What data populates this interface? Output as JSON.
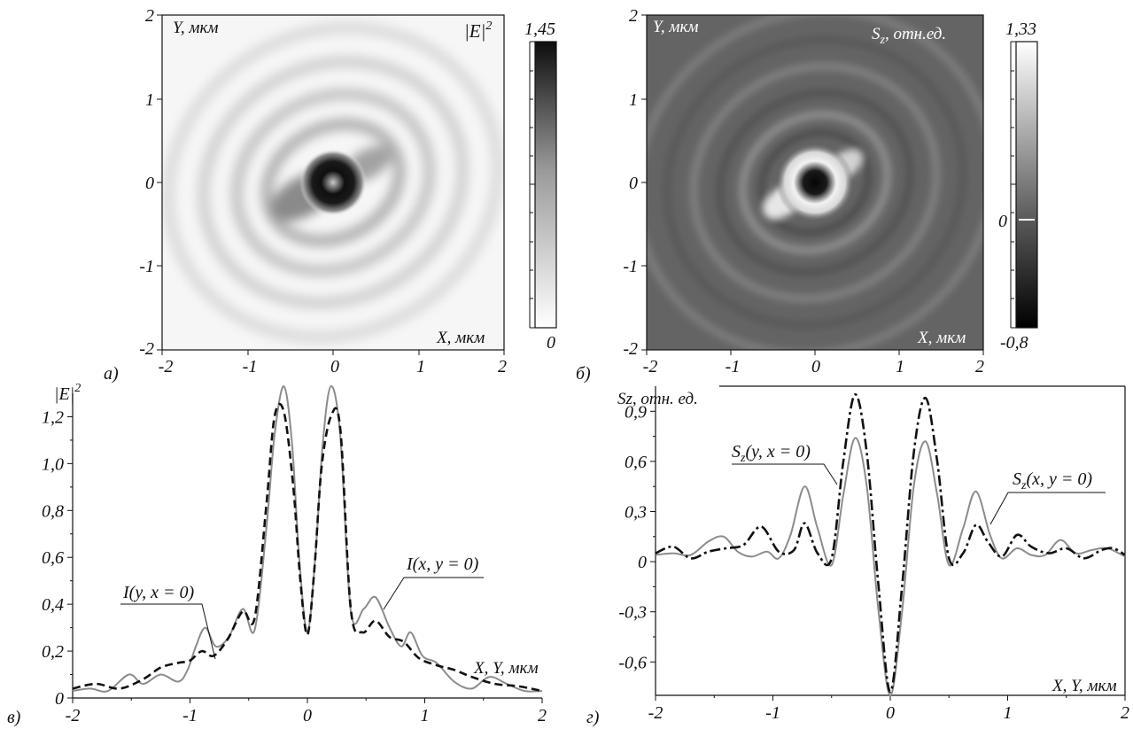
{
  "panels": {
    "a": {
      "letter": "а)",
      "y_axis_label": "Y, мкм",
      "x_axis_label": "X, мкм",
      "quantity_label": "|E|",
      "quantity_sup": "2",
      "colorbar_max": "1,45",
      "colorbar_min": "0"
    },
    "b": {
      "letter": "б)",
      "y_axis_label": "Y, мкм",
      "x_axis_label": "X, мкм",
      "quantity_label": "S",
      "quantity_sub": "z",
      "quantity_rest": ", отн.ед.",
      "colorbar_max": "1,33",
      "colorbar_zero": "0",
      "colorbar_min": "-0,8"
    },
    "c": {
      "letter": "в)",
      "y_axis_label": "|E|",
      "y_axis_sup": "2",
      "x_axis_label": "X, Y, мкм",
      "curve_label_y": "I(y, x = 0)",
      "curve_label_x": "I(x, y = 0)"
    },
    "d": {
      "letter": "г)",
      "y_axis_label": "Sz, отн. ед.",
      "x_axis_label": "X, Y, мкм",
      "curve_label_y_main": "S",
      "curve_label_y_sub": "z",
      "curve_label_y_args": "(y, x = 0)",
      "curve_label_x_main": "S",
      "curve_label_x_sub": "z",
      "curve_label_x_args": "(x, y = 0)"
    }
  },
  "chart_data": [
    {
      "id": "a",
      "type": "heatmap",
      "quantity": "|E|^2",
      "xlim": [
        -2,
        2
      ],
      "ylim": [
        -2,
        2
      ],
      "x_ticks": [
        "-2",
        "-1",
        "0",
        "1",
        "2"
      ],
      "y_ticks": [
        "2",
        "1",
        "0",
        "-1",
        "-2"
      ],
      "colorbar_range": [
        0,
        1.45
      ],
      "colormap": "white-to-black"
    },
    {
      "id": "b",
      "type": "heatmap",
      "quantity": "S_z",
      "xlim": [
        -2,
        2
      ],
      "ylim": [
        -2,
        2
      ],
      "x_ticks": [
        "-2",
        "-1",
        "0",
        "1",
        "2"
      ],
      "y_ticks": [
        "2",
        "1",
        "0",
        "-1",
        "-2"
      ],
      "colorbar_range": [
        -0.8,
        1.33
      ],
      "colormap": "black-to-white"
    },
    {
      "id": "c",
      "type": "line",
      "xlim": [
        -2,
        2
      ],
      "ylim": [
        0,
        1.3
      ],
      "x_ticks": [
        "-2",
        "-1",
        "0",
        "1",
        "2"
      ],
      "x_tick_values": [
        -2,
        -1,
        0,
        1,
        2
      ],
      "y_ticks": [
        "0",
        "0,2",
        "0,4",
        "0,6",
        "0,8",
        "1,0",
        "1,2"
      ],
      "y_tick_values": [
        0,
        0.2,
        0.4,
        0.6,
        0.8,
        1.0,
        1.2
      ],
      "series": [
        {
          "name": "I(x, y = 0)",
          "color": "#8c8c8c",
          "dash": "solid",
          "x": [
            -2,
            -1.85,
            -1.7,
            -1.52,
            -1.4,
            -1.25,
            -1.1,
            -1.02,
            -0.95,
            -0.87,
            -0.78,
            -0.67,
            -0.55,
            -0.45,
            -0.35,
            -0.28,
            -0.2,
            -0.13,
            -0.07,
            0,
            0.07,
            0.13,
            0.2,
            0.28,
            0.37,
            0.48,
            0.58,
            0.7,
            0.8,
            0.88,
            0.98,
            1.1,
            1.25,
            1.4,
            1.55,
            1.7,
            1.85,
            2
          ],
          "y": [
            0.03,
            0.04,
            0.03,
            0.1,
            0.06,
            0.1,
            0.07,
            0.12,
            0.22,
            0.3,
            0.22,
            0.26,
            0.38,
            0.29,
            0.72,
            1.12,
            1.33,
            1.08,
            0.6,
            0.28,
            0.62,
            1.08,
            1.33,
            1.12,
            0.37,
            0.38,
            0.43,
            0.3,
            0.22,
            0.28,
            0.18,
            0.15,
            0.07,
            0.04,
            0.09,
            0.06,
            0.03,
            0.03
          ]
        },
        {
          "name": "I(y, x = 0)",
          "color": "#111111",
          "dash": "dashed",
          "x": [
            -2,
            -1.8,
            -1.6,
            -1.4,
            -1.25,
            -1.1,
            -1.0,
            -0.9,
            -0.8,
            -0.68,
            -0.55,
            -0.45,
            -0.35,
            -0.28,
            -0.2,
            -0.12,
            -0.06,
            0,
            0.06,
            0.12,
            0.2,
            0.28,
            0.37,
            0.47,
            0.58,
            0.7,
            0.82,
            0.95,
            1.1,
            1.25,
            1.4,
            1.6,
            1.8,
            2
          ],
          "y": [
            0.04,
            0.06,
            0.04,
            0.08,
            0.13,
            0.15,
            0.16,
            0.2,
            0.18,
            0.25,
            0.37,
            0.34,
            0.82,
            1.2,
            1.22,
            0.9,
            0.5,
            0.27,
            0.55,
            0.98,
            1.2,
            1.15,
            0.38,
            0.28,
            0.33,
            0.26,
            0.24,
            0.17,
            0.14,
            0.12,
            0.09,
            0.06,
            0.05,
            0.03
          ]
        }
      ]
    },
    {
      "id": "d",
      "type": "line",
      "xlim": [
        -2,
        2
      ],
      "ylim": [
        -0.8,
        1.05
      ],
      "x_ticks": [
        "-2",
        "-1",
        "0",
        "1",
        "2"
      ],
      "x_tick_values": [
        -2,
        -1,
        0,
        1,
        2
      ],
      "y_ticks": [
        "-0,6",
        "-0,3",
        "0",
        "0,3",
        "0,6",
        "0,9"
      ],
      "y_tick_values": [
        -0.6,
        -0.3,
        0,
        0.3,
        0.6,
        0.9
      ],
      "series": [
        {
          "name": "Sz(x, y = 0)",
          "color": "#8c8c8c",
          "dash": "solid",
          "x": [
            -2,
            -1.85,
            -1.7,
            -1.55,
            -1.42,
            -1.3,
            -1.18,
            -1.05,
            -0.95,
            -0.85,
            -0.73,
            -0.62,
            -0.5,
            -0.4,
            -0.3,
            -0.2,
            -0.1,
            0,
            0.1,
            0.2,
            0.3,
            0.4,
            0.5,
            0.62,
            0.73,
            0.85,
            0.95,
            1.08,
            1.2,
            1.32,
            1.45,
            1.58,
            1.72,
            1.85,
            2
          ],
          "y": [
            0.04,
            0.05,
            0.04,
            0.12,
            0.15,
            0.06,
            0.03,
            0.06,
            0.02,
            0.16,
            0.45,
            0.2,
            -0.02,
            0.4,
            0.74,
            0.45,
            -0.3,
            -0.8,
            -0.3,
            0.45,
            0.72,
            0.4,
            -0.02,
            0.2,
            0.42,
            0.16,
            0.02,
            0.08,
            0.04,
            0.04,
            0.13,
            0.05,
            0.07,
            0.08,
            0.03
          ]
        },
        {
          "name": "Sz(y, x = 0)",
          "color": "#111111",
          "dash": "dashdot",
          "x": [
            -2,
            -1.85,
            -1.7,
            -1.55,
            -1.4,
            -1.25,
            -1.1,
            -0.95,
            -0.82,
            -0.73,
            -0.62,
            -0.5,
            -0.4,
            -0.3,
            -0.2,
            -0.1,
            0,
            0.1,
            0.2,
            0.3,
            0.4,
            0.5,
            0.62,
            0.73,
            0.83,
            0.95,
            1.08,
            1.2,
            1.35,
            1.5,
            1.65,
            1.8,
            1.9,
            2
          ],
          "y": [
            0.05,
            0.09,
            0.02,
            0.06,
            0.08,
            0.1,
            0.21,
            0.06,
            0.07,
            0.23,
            0.05,
            0.02,
            0.6,
            1.0,
            0.65,
            -0.15,
            -0.78,
            -0.15,
            0.65,
            0.98,
            0.6,
            0.02,
            0.05,
            0.22,
            0.12,
            0.03,
            0.16,
            0.09,
            0.05,
            0.08,
            0.02,
            0.07,
            0.08,
            0.04
          ]
        }
      ]
    }
  ]
}
